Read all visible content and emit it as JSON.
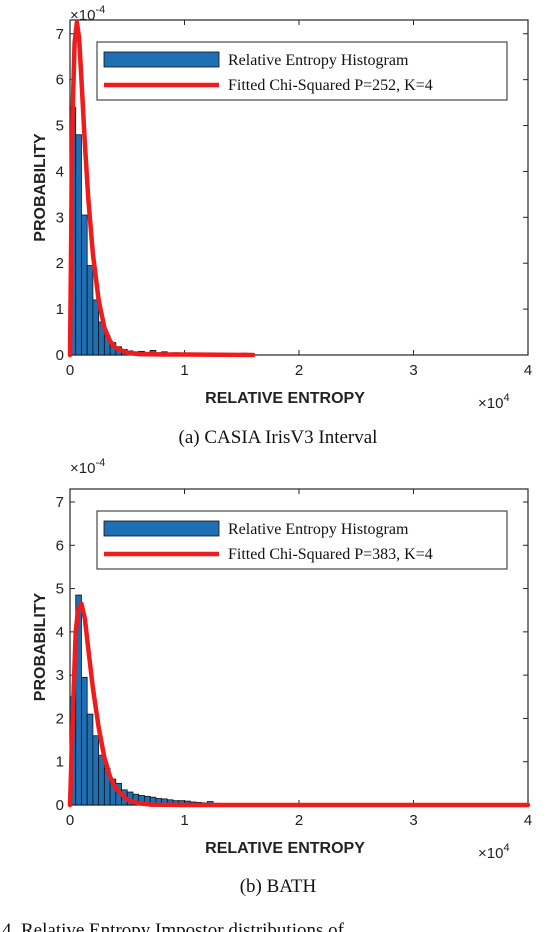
{
  "chart_data": [
    {
      "type": "bar",
      "caption": "(a) CASIA IrisV3 Interval",
      "xlabel": "RELATIVE ENTROPY",
      "ylabel": "PROBABILITY",
      "x_multiplier": "×10",
      "x_multiplier_exp": "4",
      "y_multiplier": "×10",
      "y_multiplier_exp": "-4",
      "xlim": [
        0,
        4
      ],
      "ylim": [
        0,
        7.3
      ],
      "xticks": [
        "0",
        "1",
        "2",
        "3",
        "4"
      ],
      "yticks": [
        "0",
        "1",
        "2",
        "3",
        "4",
        "5",
        "6",
        "7"
      ],
      "bar_color": "#1f6fb4",
      "curve_color": "#ee1c1c",
      "bin_width": 0.05,
      "histogram": {
        "name": "Relative Entropy Histogram",
        "bins": [
          {
            "x": 0.025,
            "y": 5.4
          },
          {
            "x": 0.075,
            "y": 4.8
          },
          {
            "x": 0.125,
            "y": 3.05
          },
          {
            "x": 0.175,
            "y": 1.95
          },
          {
            "x": 0.225,
            "y": 1.2
          },
          {
            "x": 0.275,
            "y": 0.72
          },
          {
            "x": 0.325,
            "y": 0.42
          },
          {
            "x": 0.375,
            "y": 0.27
          },
          {
            "x": 0.425,
            "y": 0.18
          },
          {
            "x": 0.475,
            "y": 0.12
          },
          {
            "x": 0.525,
            "y": 0.09
          },
          {
            "x": 0.575,
            "y": 0.07
          },
          {
            "x": 0.625,
            "y": 0.08
          },
          {
            "x": 0.675,
            "y": 0.06
          },
          {
            "x": 0.725,
            "y": 0.1
          },
          {
            "x": 0.775,
            "y": 0.05
          },
          {
            "x": 0.825,
            "y": 0.07
          },
          {
            "x": 0.875,
            "y": 0.04
          },
          {
            "x": 0.925,
            "y": 0.05
          },
          {
            "x": 0.975,
            "y": 0.03
          },
          {
            "x": 1.025,
            "y": 0.04
          },
          {
            "x": 1.075,
            "y": 0.03
          },
          {
            "x": 1.125,
            "y": 0.02
          },
          {
            "x": 1.175,
            "y": 0.03
          },
          {
            "x": 1.225,
            "y": 0.02
          },
          {
            "x": 1.275,
            "y": 0.02
          },
          {
            "x": 1.325,
            "y": 0.02
          },
          {
            "x": 1.375,
            "y": 0.02
          },
          {
            "x": 1.425,
            "y": 0.02
          },
          {
            "x": 1.475,
            "y": 0.01
          },
          {
            "x": 1.525,
            "y": 0.04
          }
        ]
      },
      "curve": {
        "name": "Fitted Chi-Squared P=252, K=4",
        "points": [
          [
            0.0,
            0.0
          ],
          [
            0.02,
            5.0
          ],
          [
            0.04,
            6.8
          ],
          [
            0.06,
            7.25
          ],
          [
            0.08,
            6.9
          ],
          [
            0.1,
            6.0
          ],
          [
            0.13,
            4.6
          ],
          [
            0.16,
            3.4
          ],
          [
            0.2,
            2.2
          ],
          [
            0.25,
            1.2
          ],
          [
            0.3,
            0.6
          ],
          [
            0.35,
            0.3
          ],
          [
            0.4,
            0.15
          ],
          [
            0.5,
            0.05
          ],
          [
            0.6,
            0.02
          ],
          [
            0.8,
            0.01
          ],
          [
            1.0,
            0.01
          ],
          [
            1.6,
            0.0
          ]
        ]
      }
    },
    {
      "type": "bar",
      "caption": "(b) BATH",
      "xlabel": "RELATIVE ENTROPY",
      "ylabel": "PROBABILITY",
      "x_multiplier": "×10",
      "x_multiplier_exp": "4",
      "y_multiplier": "×10",
      "y_multiplier_exp": "-4",
      "xlim": [
        0,
        4
      ],
      "ylim": [
        0,
        7.3
      ],
      "xticks": [
        "0",
        "1",
        "2",
        "3",
        "4"
      ],
      "yticks": [
        "0",
        "1",
        "2",
        "3",
        "4",
        "5",
        "6",
        "7"
      ],
      "bar_color": "#1f6fb4",
      "curve_color": "#ee1c1c",
      "bin_width": 0.05,
      "histogram": {
        "name": "Relative Entropy Histogram",
        "bins": [
          {
            "x": 0.025,
            "y": 2.5
          },
          {
            "x": 0.075,
            "y": 4.85
          },
          {
            "x": 0.125,
            "y": 2.95
          },
          {
            "x": 0.175,
            "y": 2.1
          },
          {
            "x": 0.225,
            "y": 1.6
          },
          {
            "x": 0.275,
            "y": 1.15
          },
          {
            "x": 0.325,
            "y": 0.85
          },
          {
            "x": 0.375,
            "y": 0.6
          },
          {
            "x": 0.425,
            "y": 0.5
          },
          {
            "x": 0.475,
            "y": 0.35
          },
          {
            "x": 0.525,
            "y": 0.3
          },
          {
            "x": 0.575,
            "y": 0.25
          },
          {
            "x": 0.625,
            "y": 0.22
          },
          {
            "x": 0.675,
            "y": 0.2
          },
          {
            "x": 0.725,
            "y": 0.18
          },
          {
            "x": 0.775,
            "y": 0.15
          },
          {
            "x": 0.825,
            "y": 0.14
          },
          {
            "x": 0.875,
            "y": 0.12
          },
          {
            "x": 0.925,
            "y": 0.1
          },
          {
            "x": 0.975,
            "y": 0.1
          },
          {
            "x": 1.025,
            "y": 0.09
          },
          {
            "x": 1.075,
            "y": 0.07
          },
          {
            "x": 1.125,
            "y": 0.06
          },
          {
            "x": 1.175,
            "y": 0.05
          },
          {
            "x": 1.225,
            "y": 0.08
          },
          {
            "x": 1.275,
            "y": 0.04
          },
          {
            "x": 1.325,
            "y": 0.03
          },
          {
            "x": 1.375,
            "y": 0.03
          },
          {
            "x": 1.425,
            "y": 0.02
          },
          {
            "x": 1.475,
            "y": 0.02
          },
          {
            "x": 1.525,
            "y": 0.02
          },
          {
            "x": 1.575,
            "y": 0.01
          },
          {
            "x": 1.625,
            "y": 0.01
          },
          {
            "x": 1.675,
            "y": 0.01
          },
          {
            "x": 1.725,
            "y": 0.01
          },
          {
            "x": 1.775,
            "y": 0.01
          }
        ]
      },
      "curve": {
        "name": "Fitted Chi-Squared P=383, K=4",
        "points": [
          [
            0.0,
            0.0
          ],
          [
            0.03,
            2.5
          ],
          [
            0.05,
            4.0
          ],
          [
            0.07,
            4.5
          ],
          [
            0.1,
            4.65
          ],
          [
            0.13,
            4.3
          ],
          [
            0.16,
            3.6
          ],
          [
            0.2,
            2.7
          ],
          [
            0.25,
            1.8
          ],
          [
            0.3,
            1.1
          ],
          [
            0.35,
            0.65
          ],
          [
            0.4,
            0.38
          ],
          [
            0.5,
            0.12
          ],
          [
            0.6,
            0.04
          ],
          [
            0.7,
            0.01
          ],
          [
            1.0,
            0.0
          ],
          [
            4.0,
            0.0
          ]
        ]
      }
    }
  ],
  "footer_fragment": "4.   Relative   Entropy   Impostor   distributions   of"
}
